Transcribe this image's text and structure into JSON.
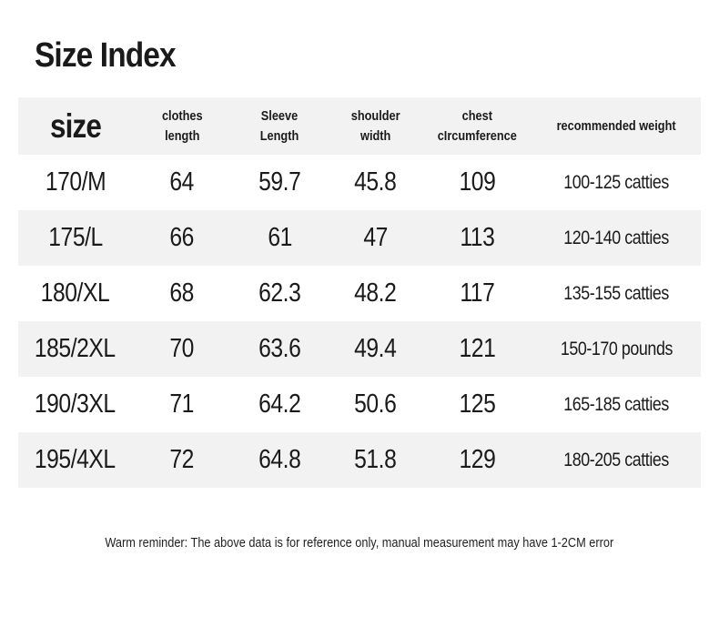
{
  "page_title": "Size Index",
  "colors": {
    "background": "#ffffff",
    "stripe": "#f2f2f2",
    "text": "#1a1a1a"
  },
  "table": {
    "headers": {
      "size": "size",
      "clothes": [
        "clothes",
        "length"
      ],
      "sleeve": [
        "Sleeve",
        "Length"
      ],
      "shoulder": [
        "shoulder",
        "width"
      ],
      "chest": [
        "chest",
        "cIrcumference"
      ],
      "weight": "recommended weight"
    },
    "rows": [
      {
        "size": "170/M",
        "clothes_length": "64",
        "sleeve_length": "59.7",
        "shoulder_width": "45.8",
        "chest_circumference": "109",
        "recommended_weight": "100-125 catties"
      },
      {
        "size": "175/L",
        "clothes_length": "66",
        "sleeve_length": "61",
        "shoulder_width": "47",
        "chest_circumference": "113",
        "recommended_weight": "120-140 catties"
      },
      {
        "size": "180/XL",
        "clothes_length": "68",
        "sleeve_length": "62.3",
        "shoulder_width": "48.2",
        "chest_circumference": "117",
        "recommended_weight": "135-155 catties"
      },
      {
        "size": "185/2XL",
        "clothes_length": "70",
        "sleeve_length": "63.6",
        "shoulder_width": "49.4",
        "chest_circumference": "121",
        "recommended_weight": "150-170 pounds"
      },
      {
        "size": "190/3XL",
        "clothes_length": "71",
        "sleeve_length": "64.2",
        "shoulder_width": "50.6",
        "chest_circumference": "125",
        "recommended_weight": "165-185 catties"
      },
      {
        "size": "195/4XL",
        "clothes_length": "72",
        "sleeve_length": "64.8",
        "shoulder_width": "51.8",
        "chest_circumference": "129",
        "recommended_weight": "180-205 catties"
      }
    ]
  },
  "footer_note": "Warm reminder: The above data is for reference only, manual measurement may have 1-2CM error"
}
